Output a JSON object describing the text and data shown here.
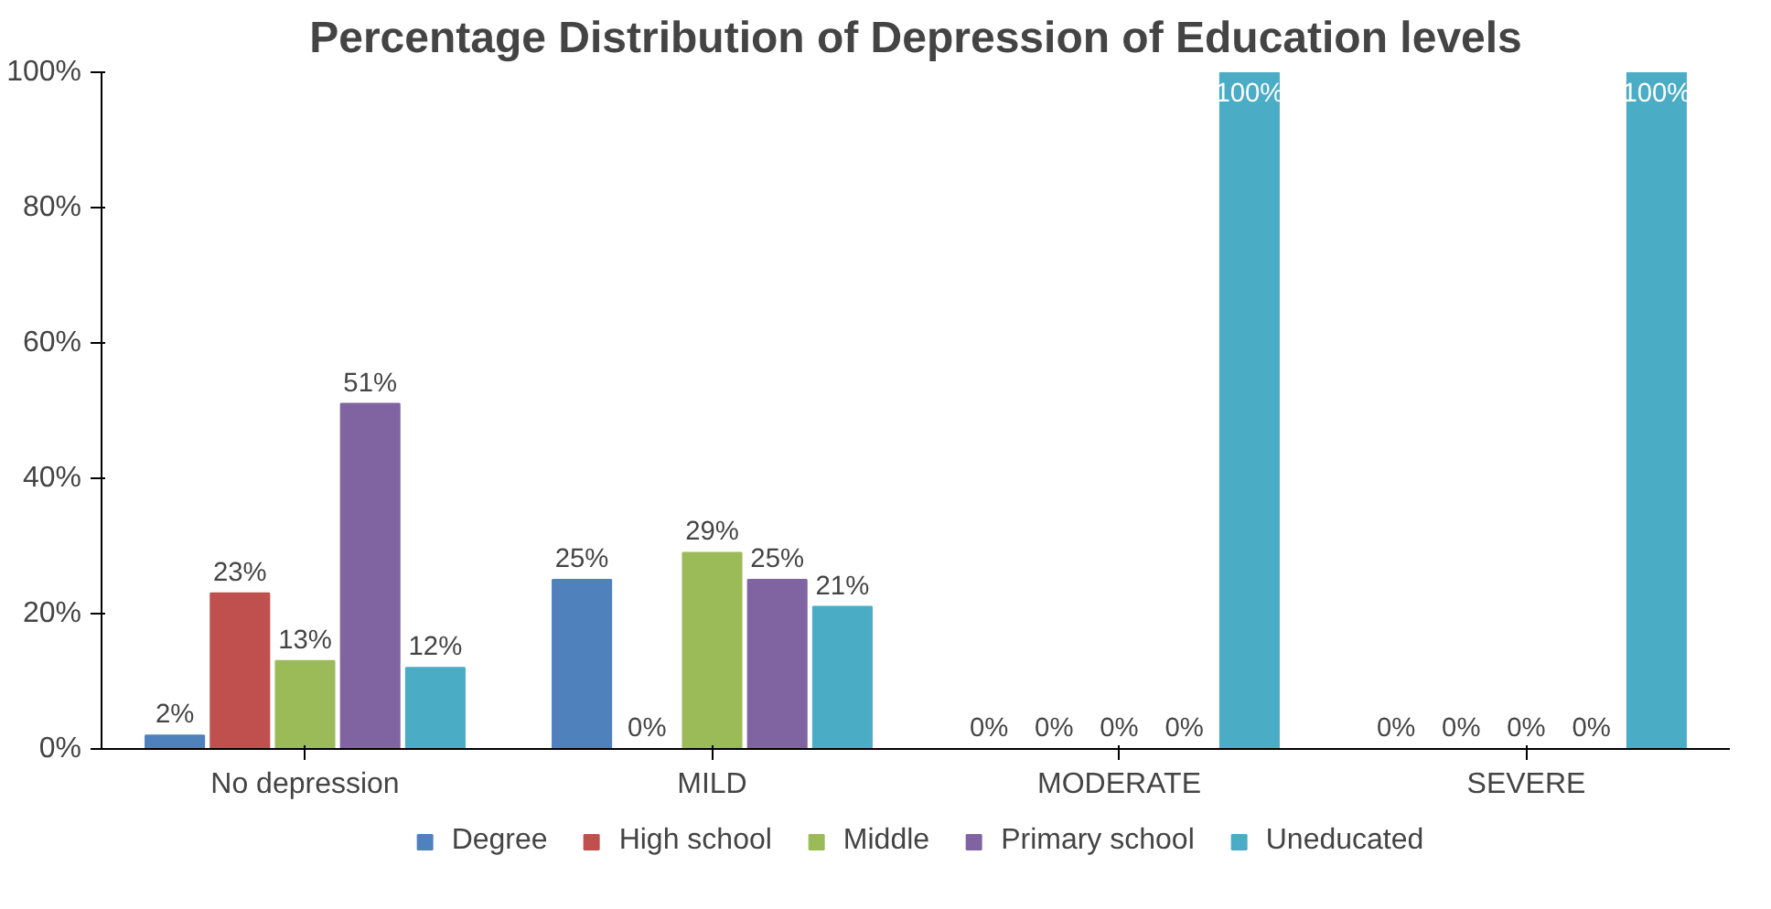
{
  "chart_data": {
    "type": "bar",
    "title": "Percentage Distribution of Depression of Education levels",
    "categories": [
      "No depression",
      "MILD",
      "MODERATE",
      "SEVERE"
    ],
    "series": [
      {
        "name": "Degree",
        "color": "#4f81bd",
        "values": [
          2,
          25,
          0,
          0
        ],
        "value_labels": [
          "2%",
          "25%",
          "0%",
          "0%"
        ]
      },
      {
        "name": "High school",
        "color": "#c0504d",
        "values": [
          23,
          0,
          0,
          0
        ],
        "value_labels": [
          "23%",
          "0%",
          "0%",
          "0%"
        ]
      },
      {
        "name": "Middle",
        "color": "#9bbb59",
        "values": [
          13,
          29,
          0,
          0
        ],
        "value_labels": [
          "13%",
          "29%",
          "0%",
          "0%"
        ]
      },
      {
        "name": "Primary school",
        "color": "#8064a2",
        "values": [
          51,
          25,
          0,
          0
        ],
        "value_labels": [
          "51%",
          "25%",
          "0%",
          "0%"
        ]
      },
      {
        "name": "Uneducated",
        "color": "#4bacc6",
        "values": [
          12,
          21,
          100,
          100
        ],
        "value_labels": [
          "12%",
          "21%",
          "100%",
          "100%"
        ]
      }
    ],
    "ylim": [
      0,
      100
    ],
    "yticks": [
      {
        "value": 0,
        "label": "0%"
      },
      {
        "value": 20,
        "label": "20%"
      },
      {
        "value": 40,
        "label": "40%"
      },
      {
        "value": 60,
        "label": "60%"
      },
      {
        "value": 80,
        "label": "80%"
      },
      {
        "value": 100,
        "label": "100%"
      }
    ],
    "grid": false,
    "legend": "bottom"
  }
}
